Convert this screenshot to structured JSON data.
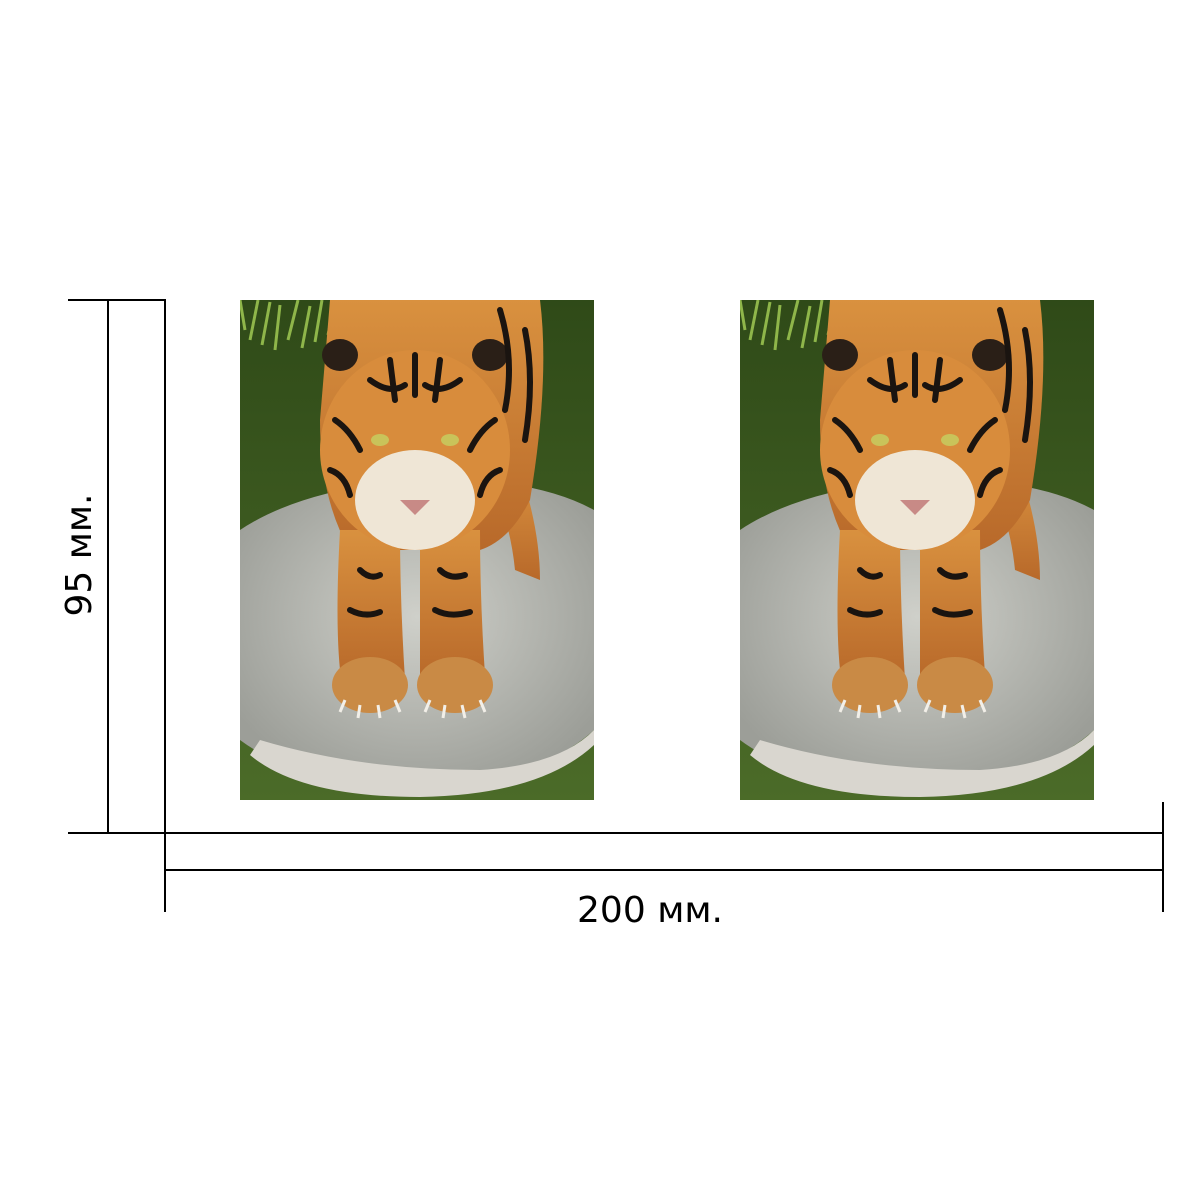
{
  "dimensions": {
    "width_label": "200 мм.",
    "height_label": "95 мм."
  },
  "photos": [
    {
      "subject": "tiger-on-rock"
    },
    {
      "subject": "tiger-on-rock"
    }
  ],
  "colors": {
    "line": "#000000",
    "background": "#ffffff",
    "water": "#3f5a1f",
    "rock": "#b9bbb5",
    "tiger_fur": "#c9772e",
    "stripe": "#1a1410"
  }
}
